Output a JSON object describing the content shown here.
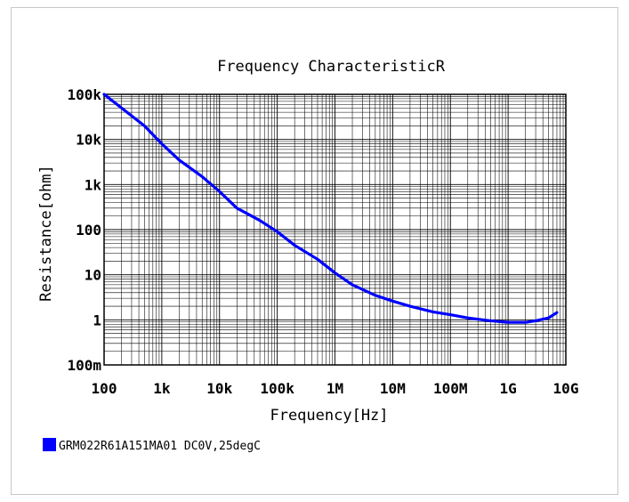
{
  "chart_data": {
    "type": "line",
    "title": "Frequency  CharacteristicR",
    "xlabel": "Frequency[Hz]",
    "ylabel": "Resistance[ohm]",
    "x_scale": "log",
    "y_scale": "log",
    "xlim": [
      100,
      10000000000
    ],
    "ylim": [
      0.1,
      100000
    ],
    "x_ticks": [
      {
        "value": 100,
        "label": "100"
      },
      {
        "value": 1000,
        "label": "1k"
      },
      {
        "value": 10000,
        "label": "10k"
      },
      {
        "value": 100000,
        "label": "100k"
      },
      {
        "value": 1000000,
        "label": "1M"
      },
      {
        "value": 10000000,
        "label": "10M"
      },
      {
        "value": 100000000,
        "label": "100M"
      },
      {
        "value": 1000000000,
        "label": "1G"
      },
      {
        "value": 10000000000,
        "label": "10G"
      }
    ],
    "y_ticks": [
      {
        "value": 0.1,
        "label": "100m"
      },
      {
        "value": 1,
        "label": "1"
      },
      {
        "value": 10,
        "label": "10"
      },
      {
        "value": 100,
        "label": "100"
      },
      {
        "value": 1000,
        "label": "1k"
      },
      {
        "value": 10000,
        "label": "10k"
      },
      {
        "value": 100000,
        "label": "100k"
      }
    ],
    "grid": true,
    "legend_position": "bottom-left",
    "series": [
      {
        "name": "GRM022R61A151MA01 DC0V,25degC",
        "color": "#0000ff",
        "x": [
          100,
          200,
          500,
          1000,
          2000,
          5000,
          10000,
          20000,
          50000,
          100000,
          200000,
          500000,
          1000000,
          2000000,
          5000000,
          10000000,
          20000000,
          50000000,
          100000000,
          200000000,
          500000000,
          1000000000,
          2000000000,
          3000000000,
          5000000000,
          7000000000
        ],
        "y": [
          100000,
          50000,
          20000,
          8000,
          3500,
          1500,
          700,
          300,
          160,
          90,
          45,
          22,
          11,
          6,
          3.5,
          2.6,
          2.0,
          1.5,
          1.3,
          1.1,
          0.95,
          0.88,
          0.88,
          0.95,
          1.1,
          1.45
        ]
      }
    ]
  }
}
